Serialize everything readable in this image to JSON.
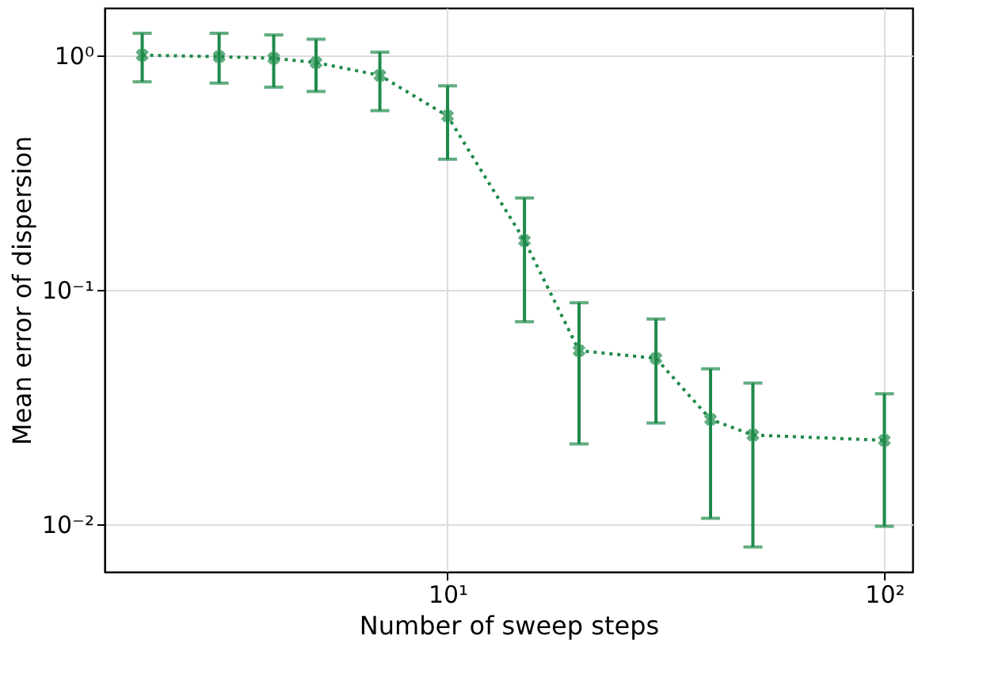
{
  "chart_data": {
    "type": "line",
    "xlabel": "Number of sweep steps",
    "ylabel": "Mean error of dispersion",
    "x": [
      2,
      3,
      4,
      5,
      7,
      10,
      15,
      20,
      30,
      40,
      50,
      100
    ],
    "series": [
      {
        "color": "#1e8a4a",
        "values": [
          1.0,
          0.985,
          0.97,
          0.93,
          0.82,
          0.55,
          0.162,
          0.055,
          0.051,
          0.028,
          0.024,
          0.0228
        ],
        "errors": [
          [
            0.77,
            1.24
          ],
          [
            0.76,
            1.24
          ],
          [
            0.73,
            1.22
          ],
          [
            0.7,
            1.17
          ],
          [
            0.58,
            1.03
          ],
          [
            0.36,
            0.74
          ],
          [
            0.073,
            0.246
          ],
          [
            0.022,
            0.088
          ],
          [
            0.027,
            0.075
          ],
          [
            0.0106,
            0.046
          ],
          [
            0.008,
            0.04
          ],
          [
            0.0098,
            0.036
          ]
        ]
      }
    ],
    "log": "xy",
    "xlim": [
      1.64,
      116
    ],
    "ylim": [
      0.00627,
      1.59
    ],
    "xticks": [
      {
        "value": 10,
        "label": "10¹"
      },
      {
        "value": 100,
        "label": "10²"
      }
    ],
    "yticks": [
      {
        "value": 0.01,
        "label": "10⁻²"
      },
      {
        "value": 0.1,
        "label": "10⁻¹"
      },
      {
        "value": 1,
        "label": "10⁰"
      }
    ],
    "grid": true,
    "marker": "cross",
    "line_style": "dotted"
  }
}
